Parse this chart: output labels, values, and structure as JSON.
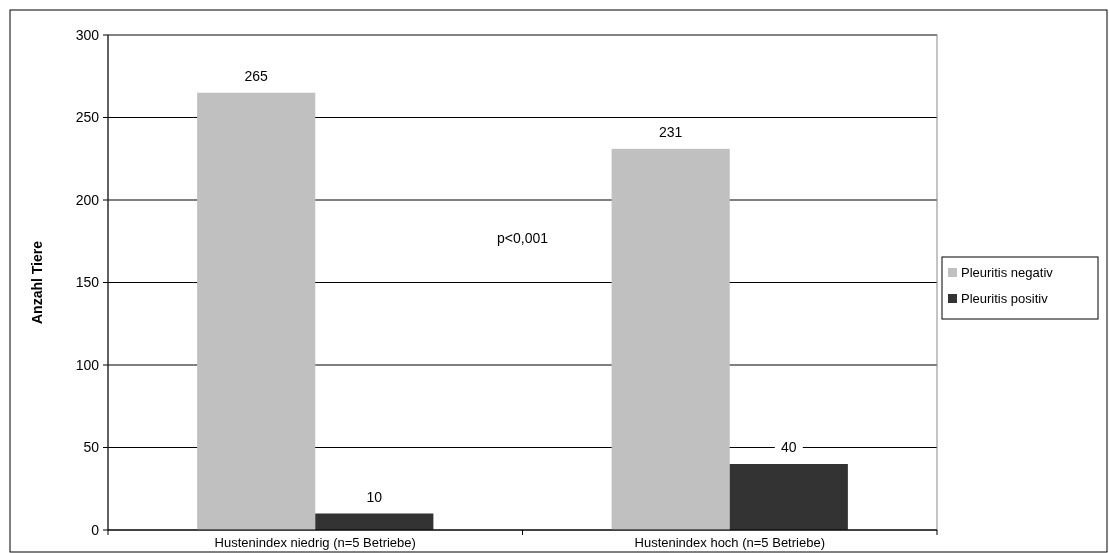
{
  "chart_data": {
    "type": "bar",
    "ylabel": "Anzahl Tiere",
    "categories": [
      "Hustenindex niedrig (n=5 Betriebe)",
      "Hustenindex hoch (n=5 Betriebe)"
    ],
    "series": [
      {
        "name": "Pleuritis negativ",
        "color": "#c0c0c0",
        "values": [
          265,
          231
        ]
      },
      {
        "name": "Pleuritis positiv",
        "color": "#333333",
        "values": [
          10,
          40
        ]
      }
    ],
    "ylim": [
      0,
      300
    ],
    "yticks": [
      0,
      50,
      100,
      150,
      200,
      250,
      300
    ],
    "grid": "y",
    "legend": "right",
    "data_labels": true,
    "annotations": [
      "p<0,001"
    ]
  }
}
